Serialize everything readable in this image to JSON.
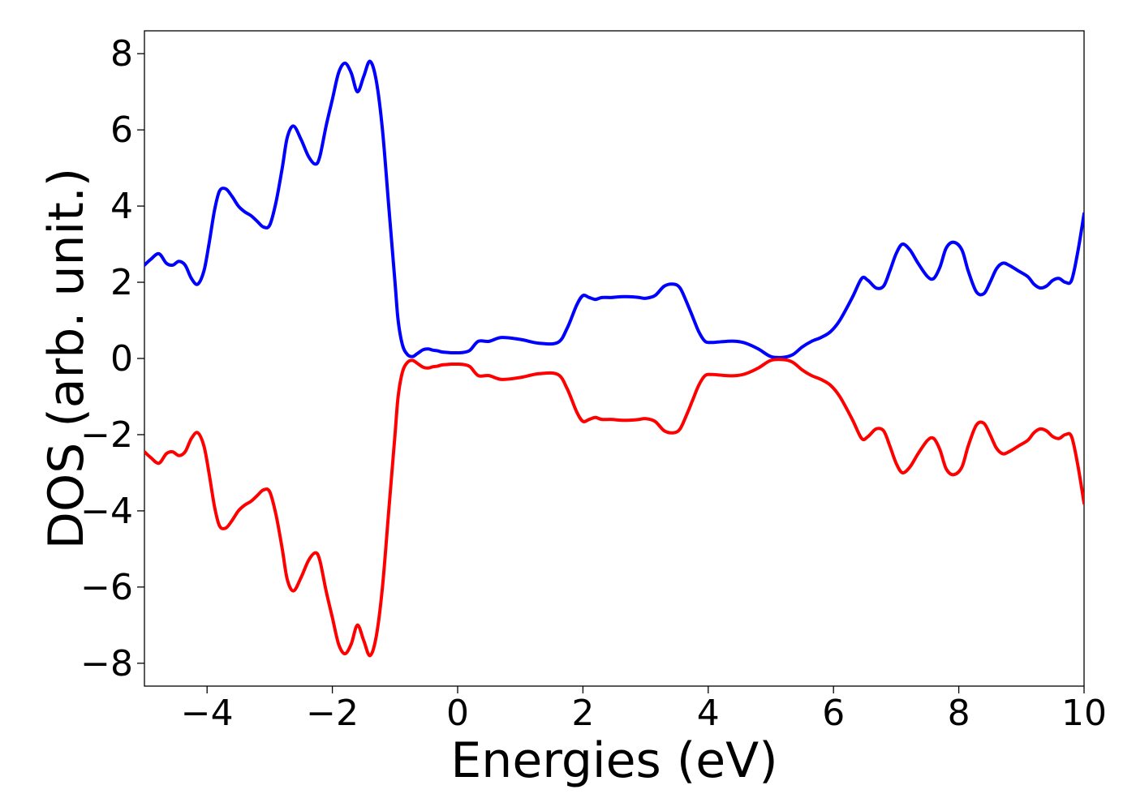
{
  "chart_data": {
    "type": "line",
    "title": "",
    "xlabel": "Energies (eV)",
    "ylabel": "DOS (arb. unit.)",
    "xlim": [
      -5,
      10
    ],
    "ylim": [
      -8.6,
      8.6
    ],
    "xticks": [
      -4,
      -2,
      0,
      2,
      4,
      6,
      8,
      10
    ],
    "yticks": [
      -8,
      -6,
      -4,
      -2,
      0,
      2,
      4,
      6,
      8
    ],
    "xtick_labels": [
      "−4",
      "−2",
      "0",
      "2",
      "4",
      "6",
      "8",
      "10"
    ],
    "ytick_labels": [
      "−8",
      "−6",
      "−4",
      "−2",
      "0",
      "2",
      "4",
      "6",
      "8"
    ],
    "grid": false,
    "legend": "none",
    "series": [
      {
        "color": "#0000ff",
        "x": [
          -5.0,
          -4.9,
          -4.77,
          -4.65,
          -4.55,
          -4.45,
          -4.35,
          -4.25,
          -4.15,
          -4.05,
          -3.97,
          -3.88,
          -3.8,
          -3.7,
          -3.6,
          -3.5,
          -3.4,
          -3.3,
          -3.2,
          -3.1,
          -3.0,
          -2.9,
          -2.8,
          -2.72,
          -2.62,
          -2.5,
          -2.38,
          -2.27,
          -2.2,
          -2.1,
          -2.0,
          -1.9,
          -1.8,
          -1.7,
          -1.6,
          -1.5,
          -1.4,
          -1.3,
          -1.2,
          -1.1,
          -1.0,
          -0.95,
          -0.88,
          -0.8,
          -0.72,
          -0.65,
          -0.55,
          -0.47,
          -0.4,
          -0.32,
          -0.25,
          -0.18,
          -0.1,
          -0.03,
          0.03,
          0.1,
          0.2,
          0.33,
          0.5,
          0.7,
          1.0,
          1.3,
          1.6,
          1.75,
          1.9,
          2.0,
          2.1,
          2.2,
          2.3,
          2.45,
          2.6,
          2.75,
          2.9,
          3.0,
          3.15,
          3.3,
          3.45,
          3.55,
          3.65,
          3.75,
          3.85,
          3.95,
          4.05,
          4.15,
          4.3,
          4.45,
          4.6,
          4.8,
          5.0,
          5.2,
          5.35,
          5.5,
          5.65,
          5.8,
          5.95,
          6.1,
          6.3,
          6.45,
          6.55,
          6.68,
          6.8,
          6.9,
          7.0,
          7.1,
          7.22,
          7.35,
          7.5,
          7.6,
          7.7,
          7.8,
          7.92,
          8.05,
          8.15,
          8.28,
          8.4,
          8.5,
          8.6,
          8.7,
          8.8,
          8.95,
          9.1,
          9.2,
          9.3,
          9.4,
          9.5,
          9.6,
          9.7,
          9.8,
          9.9,
          10.0
        ],
        "y": [
          2.45,
          2.6,
          2.75,
          2.5,
          2.45,
          2.55,
          2.45,
          2.1,
          1.95,
          2.3,
          3.0,
          3.9,
          4.4,
          4.45,
          4.25,
          4.0,
          3.85,
          3.75,
          3.6,
          3.45,
          3.5,
          4.1,
          5.0,
          5.8,
          6.1,
          5.75,
          5.3,
          5.1,
          5.3,
          6.1,
          6.8,
          7.5,
          7.75,
          7.5,
          7.0,
          7.4,
          7.8,
          7.3,
          6.0,
          4.0,
          2.0,
          1.0,
          0.35,
          0.1,
          0.05,
          0.12,
          0.23,
          0.25,
          0.22,
          0.2,
          0.17,
          0.16,
          0.15,
          0.15,
          0.15,
          0.16,
          0.22,
          0.45,
          0.45,
          0.55,
          0.5,
          0.4,
          0.42,
          0.8,
          1.4,
          1.65,
          1.6,
          1.55,
          1.6,
          1.6,
          1.62,
          1.62,
          1.6,
          1.58,
          1.65,
          1.9,
          1.95,
          1.85,
          1.5,
          1.1,
          0.7,
          0.45,
          0.42,
          0.43,
          0.45,
          0.45,
          0.4,
          0.25,
          0.05,
          0.03,
          0.1,
          0.3,
          0.45,
          0.55,
          0.7,
          1.0,
          1.6,
          2.1,
          2.05,
          1.85,
          1.9,
          2.3,
          2.75,
          3.0,
          2.85,
          2.5,
          2.15,
          2.1,
          2.4,
          2.9,
          3.05,
          2.85,
          2.3,
          1.75,
          1.7,
          2.0,
          2.35,
          2.5,
          2.45,
          2.3,
          2.15,
          1.95,
          1.85,
          1.9,
          2.05,
          2.1,
          2.0,
          2.05,
          2.8,
          3.8
        ]
      },
      {
        "color": "#ff0000",
        "x": [
          -5.0,
          -4.9,
          -4.77,
          -4.65,
          -4.55,
          -4.45,
          -4.35,
          -4.25,
          -4.15,
          -4.05,
          -3.97,
          -3.88,
          -3.8,
          -3.7,
          -3.6,
          -3.5,
          -3.4,
          -3.3,
          -3.2,
          -3.1,
          -3.0,
          -2.9,
          -2.8,
          -2.72,
          -2.62,
          -2.5,
          -2.38,
          -2.27,
          -2.2,
          -2.1,
          -2.0,
          -1.9,
          -1.8,
          -1.7,
          -1.6,
          -1.5,
          -1.4,
          -1.3,
          -1.2,
          -1.1,
          -1.0,
          -0.95,
          -0.88,
          -0.8,
          -0.72,
          -0.65,
          -0.55,
          -0.47,
          -0.4,
          -0.32,
          -0.25,
          -0.18,
          -0.1,
          -0.03,
          0.03,
          0.1,
          0.2,
          0.33,
          0.5,
          0.7,
          1.0,
          1.3,
          1.6,
          1.75,
          1.9,
          2.0,
          2.1,
          2.2,
          2.3,
          2.45,
          2.6,
          2.75,
          2.9,
          3.0,
          3.15,
          3.3,
          3.45,
          3.55,
          3.65,
          3.75,
          3.85,
          3.95,
          4.05,
          4.15,
          4.3,
          4.45,
          4.6,
          4.8,
          5.0,
          5.2,
          5.35,
          5.5,
          5.65,
          5.8,
          5.95,
          6.1,
          6.3,
          6.45,
          6.55,
          6.68,
          6.8,
          6.9,
          7.0,
          7.1,
          7.22,
          7.35,
          7.5,
          7.6,
          7.7,
          7.8,
          7.92,
          8.05,
          8.15,
          8.28,
          8.4,
          8.5,
          8.6,
          8.7,
          8.8,
          8.95,
          9.1,
          9.2,
          9.3,
          9.4,
          9.5,
          9.6,
          9.7,
          9.8,
          9.9,
          10.0
        ],
        "y": [
          -2.45,
          -2.6,
          -2.75,
          -2.5,
          -2.45,
          -2.55,
          -2.45,
          -2.1,
          -1.95,
          -2.3,
          -3.0,
          -3.9,
          -4.4,
          -4.45,
          -4.25,
          -4.0,
          -3.85,
          -3.75,
          -3.6,
          -3.45,
          -3.5,
          -4.1,
          -5.0,
          -5.8,
          -6.1,
          -5.75,
          -5.3,
          -5.1,
          -5.3,
          -6.1,
          -6.8,
          -7.5,
          -7.75,
          -7.5,
          -7.0,
          -7.4,
          -7.8,
          -7.3,
          -6.0,
          -4.0,
          -2.0,
          -1.0,
          -0.35,
          -0.1,
          -0.05,
          -0.12,
          -0.23,
          -0.25,
          -0.22,
          -0.2,
          -0.17,
          -0.16,
          -0.15,
          -0.15,
          -0.15,
          -0.16,
          -0.22,
          -0.45,
          -0.45,
          -0.55,
          -0.5,
          -0.4,
          -0.42,
          -0.8,
          -1.4,
          -1.65,
          -1.6,
          -1.55,
          -1.6,
          -1.6,
          -1.62,
          -1.62,
          -1.6,
          -1.58,
          -1.65,
          -1.9,
          -1.95,
          -1.85,
          -1.5,
          -1.1,
          -0.7,
          -0.45,
          -0.42,
          -0.43,
          -0.45,
          -0.45,
          -0.4,
          -0.25,
          -0.05,
          -0.03,
          -0.1,
          -0.3,
          -0.45,
          -0.55,
          -0.7,
          -1.0,
          -1.6,
          -2.1,
          -2.05,
          -1.85,
          -1.9,
          -2.3,
          -2.75,
          -3.0,
          -2.85,
          -2.5,
          -2.15,
          -2.1,
          -2.4,
          -2.9,
          -3.05,
          -2.85,
          -2.3,
          -1.75,
          -1.7,
          -2.0,
          -2.35,
          -2.5,
          -2.45,
          -2.3,
          -2.15,
          -1.95,
          -1.85,
          -1.9,
          -2.05,
          -2.1,
          -2.0,
          -2.05,
          -2.8,
          -3.8
        ]
      }
    ]
  }
}
